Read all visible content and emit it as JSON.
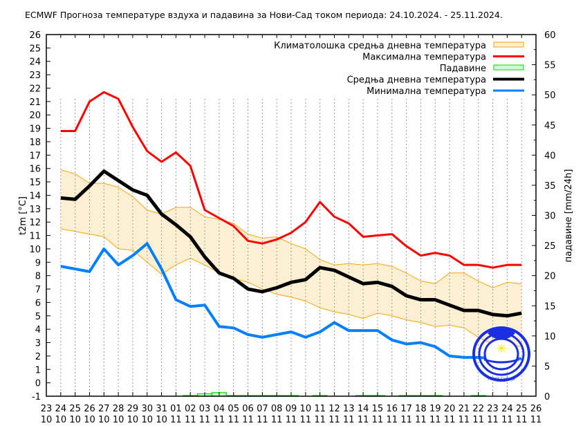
{
  "chart_data": {
    "type": "line",
    "title": "ECMWF Прогноза температуре вздуха и падавина за Нови-Сад током периода: 24.10.2024. - 25.11.2024.",
    "ylabel": "t2m [°C]",
    "y2label": "падавине [mm/24h]",
    "ylim": [
      -1,
      26
    ],
    "y2lim": [
      0,
      60
    ],
    "grid": "vertical dashed",
    "legend_position": "top-right",
    "x_ticks": [
      [
        "23",
        "10"
      ],
      [
        "24",
        "10"
      ],
      [
        "25",
        "10"
      ],
      [
        "26",
        "10"
      ],
      [
        "27",
        "10"
      ],
      [
        "28",
        "10"
      ],
      [
        "29",
        "10"
      ],
      [
        "30",
        "10"
      ],
      [
        "31",
        "10"
      ],
      [
        "01",
        "11"
      ],
      [
        "02",
        "11"
      ],
      [
        "03",
        "11"
      ],
      [
        "04",
        "11"
      ],
      [
        "05",
        "11"
      ],
      [
        "06",
        "11"
      ],
      [
        "07",
        "11"
      ],
      [
        "08",
        "11"
      ],
      [
        "09",
        "11"
      ],
      [
        "10",
        "11"
      ],
      [
        "11",
        "11"
      ],
      [
        "12",
        "11"
      ],
      [
        "13",
        "11"
      ],
      [
        "14",
        "11"
      ],
      [
        "15",
        "11"
      ],
      [
        "16",
        "11"
      ],
      [
        "17",
        "11"
      ],
      [
        "18",
        "11"
      ],
      [
        "19",
        "11"
      ],
      [
        "20",
        "11"
      ],
      [
        "21",
        "11"
      ],
      [
        "22",
        "11"
      ],
      [
        "23",
        "11"
      ],
      [
        "24",
        "11"
      ],
      [
        "25",
        "11"
      ],
      [
        "26",
        "11"
      ]
    ],
    "dates": [
      "24.10",
      "25.10",
      "26.10",
      "27.10",
      "28.10",
      "29.10",
      "30.10",
      "31.10",
      "01.11",
      "02.11",
      "03.11",
      "04.11",
      "05.11",
      "06.11",
      "07.11",
      "08.11",
      "09.11",
      "10.11",
      "11.11",
      "12.11",
      "13.11",
      "14.11",
      "15.11",
      "16.11",
      "17.11",
      "18.11",
      "19.11",
      "20.11",
      "21.11",
      "22.11",
      "23.11",
      "24.11",
      "25.11"
    ],
    "series": [
      {
        "name": "Климатолошка средња дневна температура",
        "kind": "band",
        "color": "#ffa500",
        "fill": "#fdefd2",
        "upper": [
          15.9,
          15.6,
          14.9,
          14.9,
          14.6,
          13.9,
          12.9,
          12.6,
          13.1,
          13.1,
          12.4,
          12.2,
          11.9,
          11.1,
          10.8,
          10.9,
          10.4,
          10.0,
          9.2,
          8.8,
          8.9,
          8.8,
          8.9,
          8.7,
          8.2,
          7.6,
          7.4,
          8.2,
          8.2,
          7.6,
          7.1,
          7.5,
          7.4
        ],
        "lower": [
          11.5,
          11.3,
          11.1,
          10.9,
          10.0,
          9.9,
          9.0,
          8.1,
          8.8,
          9.3,
          8.8,
          8.2,
          7.8,
          7.5,
          7.0,
          6.6,
          6.4,
          6.1,
          5.6,
          5.3,
          5.1,
          4.8,
          5.2,
          5.0,
          4.7,
          4.5,
          4.2,
          4.3,
          4.1,
          3.4,
          2.9,
          2.8,
          2.7
        ]
      },
      {
        "name": "Максимална температура",
        "kind": "line",
        "color": "#ff0000",
        "values": [
          18.8,
          18.8,
          21.0,
          21.7,
          21.2,
          19.1,
          17.3,
          16.5,
          17.2,
          16.2,
          12.9,
          12.3,
          11.7,
          10.6,
          10.4,
          10.7,
          11.2,
          12.0,
          13.5,
          12.4,
          11.9,
          10.9,
          11.0,
          11.1,
          10.2,
          9.5,
          9.7,
          9.5,
          8.8,
          8.8,
          8.6,
          8.8,
          8.8
        ]
      },
      {
        "name": "Падавине",
        "kind": "bar",
        "axis": "right",
        "color": "#00dd00",
        "fill": "#ccffcc",
        "values": [
          0,
          0,
          0,
          0,
          0,
          0,
          0,
          0,
          0,
          0.1,
          0.4,
          0.6,
          0.1,
          0.1,
          0.1,
          0.1,
          0.1,
          0,
          0.1,
          0,
          0,
          0.1,
          0.1,
          0,
          0.1,
          0.1,
          0.1,
          0,
          0,
          0.1,
          0,
          0,
          0
        ]
      },
      {
        "name": "Средња дневна температура",
        "kind": "line",
        "color": "#000000",
        "values": [
          13.8,
          13.7,
          14.7,
          15.8,
          15.1,
          14.4,
          14.0,
          12.6,
          11.8,
          10.9,
          9.4,
          8.2,
          7.8,
          7.0,
          6.8,
          7.1,
          7.5,
          7.7,
          8.6,
          8.4,
          7.9,
          7.4,
          7.5,
          7.2,
          6.5,
          6.2,
          6.2,
          5.8,
          5.4,
          5.4,
          5.1,
          5.0,
          5.2
        ]
      },
      {
        "name": "Минимална температура",
        "kind": "line",
        "color": "#0080ff",
        "values": [
          8.7,
          8.5,
          8.3,
          10.0,
          8.8,
          9.5,
          10.4,
          8.5,
          6.2,
          5.7,
          5.8,
          4.2,
          4.1,
          3.6,
          3.4,
          3.6,
          3.8,
          3.4,
          3.8,
          4.5,
          3.9,
          3.9,
          3.9,
          3.2,
          2.9,
          3.0,
          2.7,
          2.0,
          1.9,
          1.9,
          1.8,
          1.8,
          1.8
        ]
      }
    ]
  },
  "logo": {
    "name": "rhmz-logo-icon",
    "text": "РХМЗ Србије"
  }
}
